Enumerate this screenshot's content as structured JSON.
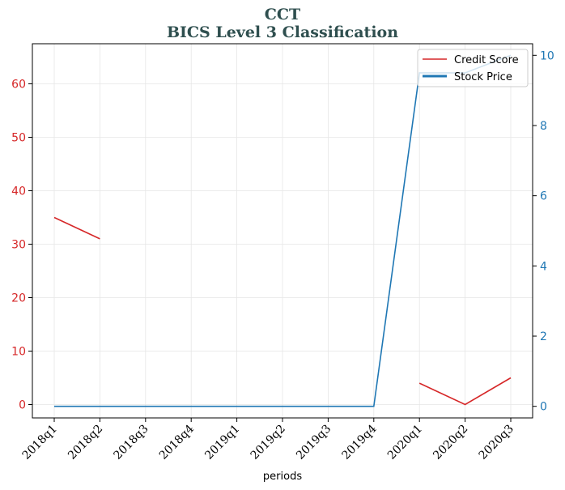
{
  "chart_data": {
    "type": "line",
    "title": "CCT",
    "subtitle": "BICS Level 3 Classification",
    "xlabel": "periods",
    "categories": [
      "2018q1",
      "2018q2",
      "2018q3",
      "2018q4",
      "2019q1",
      "2019q2",
      "2019q3",
      "2019q4",
      "2020q1",
      "2020q2",
      "2020q3"
    ],
    "y_left": {
      "ticks": [
        0,
        10,
        20,
        30,
        40,
        50,
        60
      ],
      "ylim": [
        -2.5,
        67.5
      ]
    },
    "y_right": {
      "ticks": [
        0,
        2,
        4,
        6,
        8,
        10
      ],
      "ylim": [
        -0.33,
        10.33
      ]
    },
    "grid": true,
    "legend_position": "top-right",
    "series": [
      {
        "name": "Credit Score",
        "axis": "left",
        "color": "#d62728",
        "values": [
          35,
          31,
          null,
          null,
          null,
          null,
          null,
          null,
          4,
          0,
          5
        ]
      },
      {
        "name": "Stock Price",
        "axis": "right",
        "color": "#1f77b4",
        "values": [
          0,
          0,
          0,
          0,
          0,
          0,
          0,
          0,
          9.5,
          9.5,
          10
        ]
      }
    ],
    "colors": {
      "title": "#2f4f4f",
      "left_axis": "#d62728",
      "right_axis": "#1f77b4"
    }
  }
}
